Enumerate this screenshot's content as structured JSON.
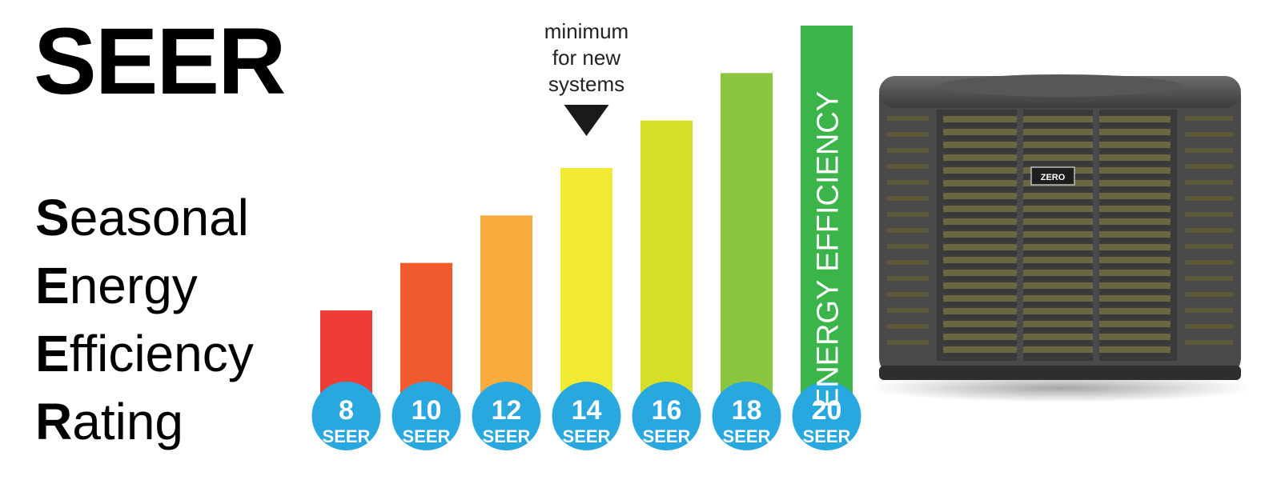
{
  "title": "SEER",
  "acronym": [
    {
      "initial": "S",
      "rest": "easonal"
    },
    {
      "initial": "E",
      "rest": "nergy"
    },
    {
      "initial": "E",
      "rest": "fficiency"
    },
    {
      "initial": "R",
      "rest": "ating"
    }
  ],
  "chart_data": {
    "type": "bar",
    "categories": [
      "8",
      "10",
      "12",
      "14",
      "16",
      "18",
      "20"
    ],
    "values": [
      8,
      10,
      12,
      14,
      16,
      18,
      20
    ],
    "unit_label": "SEER",
    "colors": [
      "#ee3d37",
      "#f15a2c",
      "#faac3e",
      "#f3ea35",
      "#d6df27",
      "#8cc540",
      "#3bb54a"
    ],
    "bar_label": "ENERGY EFFICIENCY",
    "annotation": {
      "text": [
        "minimum",
        "for new",
        "systems"
      ],
      "target": "14"
    },
    "circle_color": "#29a8e0"
  },
  "product": {
    "logo_text": "ZERO"
  }
}
